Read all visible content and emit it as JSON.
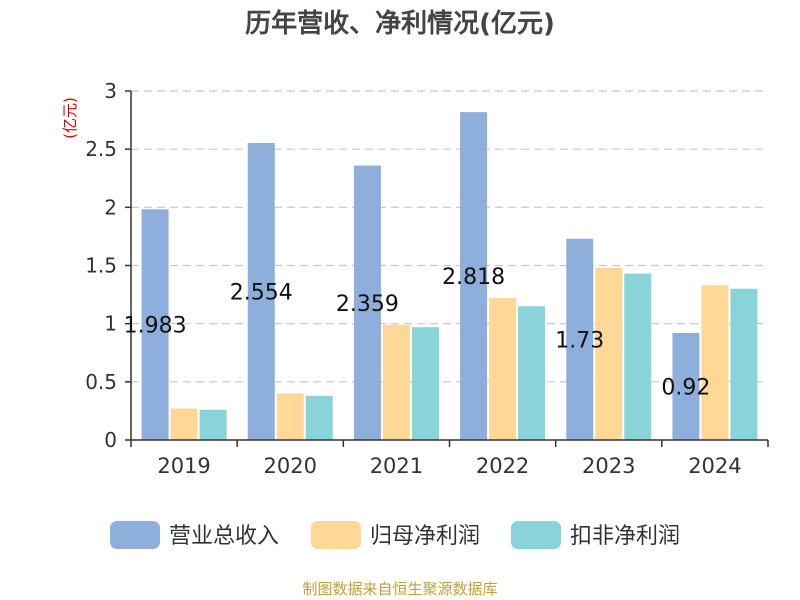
{
  "title": "历年营收、净利情况(亿元)",
  "source": "制图数据来自恒生聚源数据库",
  "chart_data": {
    "type": "bar",
    "unit_label": "(亿元)",
    "categories": [
      "2019",
      "2020",
      "2021",
      "2022",
      "2023",
      "2024"
    ],
    "ylim": [
      0,
      3
    ],
    "yticks": [
      0,
      0.5,
      1,
      1.5,
      2,
      2.5,
      3
    ],
    "ytick_labels": [
      "0",
      "0.5",
      "1",
      "1.5",
      "2",
      "2.5",
      "3"
    ],
    "grid": true,
    "legend_position": "bottom",
    "series": [
      {
        "name": "营业总收入",
        "color": "#8eaedb",
        "values": [
          1.983,
          2.554,
          2.359,
          2.818,
          1.73,
          0.92
        ],
        "labels": [
          "1.983",
          "2.554",
          "2.359",
          "2.818",
          "1.73",
          "0.92"
        ]
      },
      {
        "name": "归母净利润",
        "color": "#ffd898",
        "values": [
          0.27,
          0.4,
          0.99,
          1.22,
          1.48,
          1.33
        ]
      },
      {
        "name": "扣非净利润",
        "color": "#88d4d8",
        "values": [
          0.26,
          0.38,
          0.97,
          1.15,
          1.43,
          1.3
        ]
      }
    ]
  }
}
